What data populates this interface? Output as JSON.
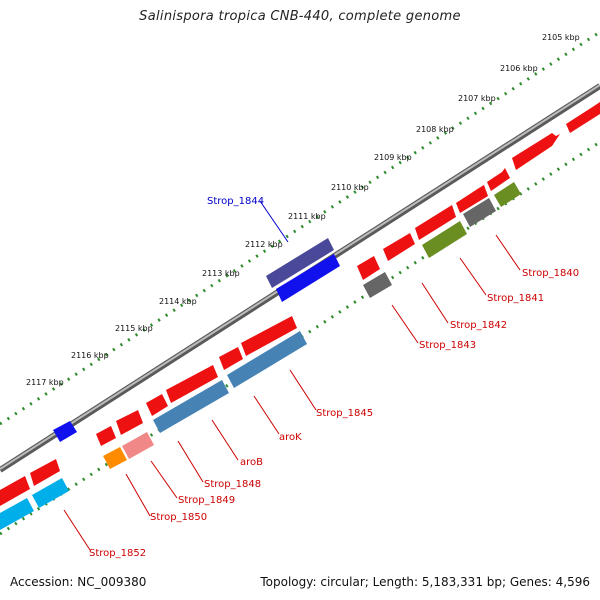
{
  "title": "Salinispora tropica CNB-440, complete genome",
  "accession_line": "Accession: NC_009380",
  "summary_line": "Topology: circular; Length: 5,183,331 bp; Genes: 4,596",
  "ticks": [
    "2105 kbp",
    "2106 kbp",
    "2107 kbp",
    "2108 kbp",
    "2109 kbp",
    "2110 kbp",
    "2111 kbp",
    "2112 kbp",
    "2113 kbp",
    "2114 kbp",
    "2115 kbp",
    "2116 kbp",
    "2117 kbp"
  ],
  "labels": {
    "strop_1844": "Strop_1844",
    "strop_1840": "Strop_1840",
    "strop_1841": "Strop_1841",
    "strop_1842": "Strop_1842",
    "strop_1843": "Strop_1843",
    "strop_1845": "Strop_1845",
    "arok": "aroK",
    "arob": "aroB",
    "strop_1848": "Strop_1848",
    "strop_1849": "Strop_1849",
    "strop_1850": "Strop_1850",
    "strop_1852": "Strop_1852"
  },
  "colors": {
    "backbone": "#8a8a8a",
    "ruler_dots": "#2e8b2e",
    "cds_red": "#ee1111",
    "cds_slate_blue": "#4a4898",
    "cds_blue": "#1111ee",
    "cds_steel_blue": "#4682b4",
    "cds_pink": "#f08888",
    "cds_orange": "#ff8c00",
    "cds_deep_sky": "#00aeea",
    "cds_olive": "#6b8e23",
    "cds_gray": "#666666",
    "label_red": "#cc0000",
    "label_blue": "#0000cc"
  }
}
